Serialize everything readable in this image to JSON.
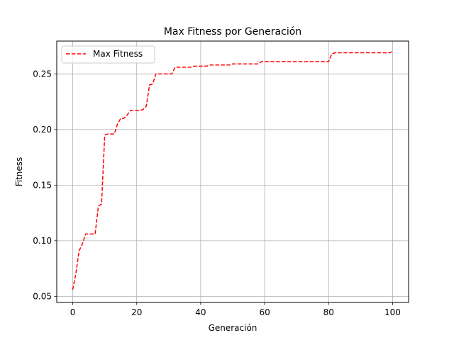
{
  "chart_data": {
    "type": "line",
    "title": "Max Fitness por Generación",
    "xlabel": "Generación",
    "ylabel": "Fitness",
    "xlim": [
      -5,
      105
    ],
    "ylim": [
      0.0445,
      0.2795
    ],
    "xticks": [
      0,
      20,
      40,
      60,
      80,
      100
    ],
    "xtick_labels": [
      "0",
      "20",
      "40",
      "60",
      "80",
      "100"
    ],
    "yticks": [
      0.05,
      0.1,
      0.15,
      0.2,
      0.25
    ],
    "ytick_labels": [
      "0.05",
      "0.10",
      "0.15",
      "0.20",
      "0.25"
    ],
    "grid": true,
    "legend_position": "top-left",
    "series": [
      {
        "name": "Max Fitness",
        "color": "#ff0000",
        "line_style": "dashed",
        "x": [
          0,
          1,
          2,
          3,
          4,
          5,
          6,
          7,
          8,
          9,
          10,
          11,
          12,
          13,
          14,
          15,
          16,
          17,
          18,
          19,
          20,
          21,
          22,
          23,
          24,
          25,
          26,
          27,
          28,
          29,
          30,
          31,
          32,
          33,
          34,
          35,
          36,
          37,
          38,
          39,
          40,
          41,
          42,
          43,
          44,
          45,
          46,
          47,
          48,
          49,
          50,
          51,
          52,
          53,
          54,
          55,
          56,
          57,
          58,
          59,
          60,
          61,
          62,
          63,
          64,
          65,
          66,
          67,
          68,
          69,
          70,
          71,
          72,
          73,
          74,
          75,
          76,
          77,
          78,
          79,
          80,
          81,
          82,
          83,
          84,
          85,
          86,
          87,
          88,
          89,
          90,
          91,
          92,
          93,
          94,
          95,
          96,
          97,
          98,
          99,
          100
        ],
        "y": [
          0.056,
          0.071,
          0.091,
          0.097,
          0.106,
          0.106,
          0.106,
          0.106,
          0.131,
          0.133,
          0.195,
          0.196,
          0.196,
          0.196,
          0.205,
          0.21,
          0.21,
          0.213,
          0.217,
          0.217,
          0.217,
          0.217,
          0.218,
          0.221,
          0.24,
          0.241,
          0.25,
          0.25,
          0.25,
          0.25,
          0.25,
          0.25,
          0.256,
          0.256,
          0.256,
          0.256,
          0.256,
          0.256,
          0.257,
          0.257,
          0.257,
          0.257,
          0.257,
          0.258,
          0.258,
          0.258,
          0.258,
          0.258,
          0.258,
          0.258,
          0.259,
          0.259,
          0.259,
          0.259,
          0.259,
          0.259,
          0.259,
          0.259,
          0.259,
          0.261,
          0.261,
          0.261,
          0.261,
          0.261,
          0.261,
          0.261,
          0.261,
          0.261,
          0.261,
          0.261,
          0.261,
          0.261,
          0.261,
          0.261,
          0.261,
          0.261,
          0.261,
          0.261,
          0.261,
          0.261,
          0.261,
          0.268,
          0.269,
          0.269,
          0.269,
          0.269,
          0.269,
          0.269,
          0.269,
          0.269,
          0.269,
          0.269,
          0.269,
          0.269,
          0.269,
          0.269,
          0.269,
          0.269,
          0.269,
          0.269,
          0.27
        ]
      }
    ]
  }
}
